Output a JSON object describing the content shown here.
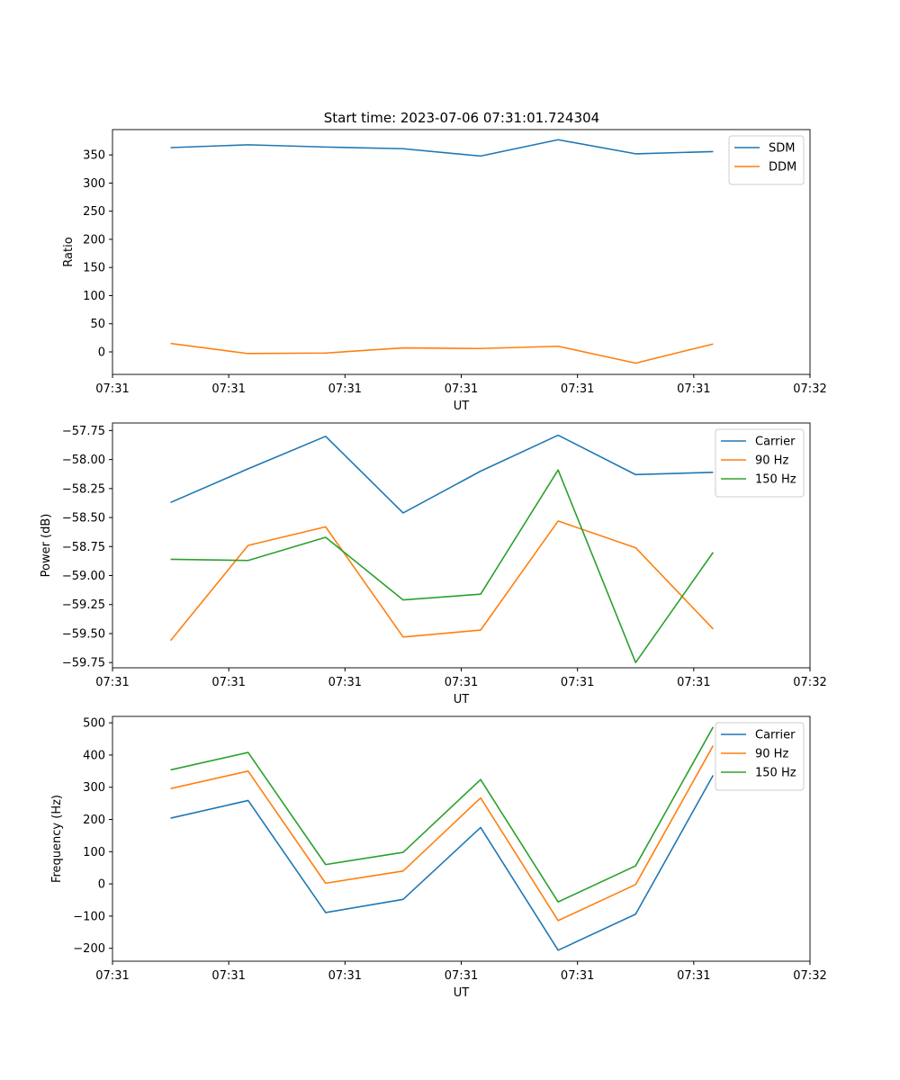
{
  "figure": {
    "title": "Start time: 2023-07-06 07:31:01.724304"
  },
  "chart_data": [
    {
      "type": "line",
      "name": "ratio",
      "xlabel": "UT",
      "ylabel": "Ratio",
      "x": [
        0,
        1,
        2,
        3,
        4,
        5,
        6,
        7
      ],
      "xlim": [
        -0.75,
        8.25
      ],
      "x_ticks": [
        -0.75,
        0.75,
        2.25,
        3.75,
        5.25,
        6.75,
        8.25
      ],
      "x_tick_labels": [
        "07:31",
        "07:31",
        "07:31",
        "07:31",
        "07:31",
        "07:31",
        "07:32"
      ],
      "ylim": [
        -40,
        395
      ],
      "y_ticks": [
        0,
        50,
        100,
        150,
        200,
        250,
        300,
        350
      ],
      "y_tick_labels": [
        "0",
        "50",
        "100",
        "150",
        "200",
        "250",
        "300",
        "350"
      ],
      "legend_position": "top-right",
      "series": [
        {
          "name": "SDM",
          "color": "#1f77b4",
          "values": [
            363,
            368,
            364,
            361,
            348,
            377,
            352,
            356
          ]
        },
        {
          "name": "DDM",
          "color": "#ff7f0e",
          "values": [
            15,
            -3,
            -2,
            7,
            6,
            10,
            -20,
            14
          ]
        }
      ]
    },
    {
      "type": "line",
      "name": "power",
      "xlabel": "UT",
      "ylabel": "Power (dB)",
      "x": [
        0,
        1,
        2,
        3,
        4,
        5,
        6,
        7
      ],
      "xlim": [
        -0.75,
        8.25
      ],
      "x_ticks": [
        -0.75,
        0.75,
        2.25,
        3.75,
        5.25,
        6.75,
        8.25
      ],
      "x_tick_labels": [
        "07:31",
        "07:31",
        "07:31",
        "07:31",
        "07:31",
        "07:31",
        "07:32"
      ],
      "ylim": [
        -59.795,
        -57.685
      ],
      "y_ticks": [
        -59.75,
        -59.5,
        -59.25,
        -59.0,
        -58.75,
        -58.5,
        -58.25,
        -58.0,
        -57.75
      ],
      "y_tick_labels": [
        "−59.75",
        "−59.50",
        "−59.25",
        "−59.00",
        "−58.75",
        "−58.50",
        "−58.25",
        "−58.00",
        "−57.75"
      ],
      "legend_position": "top-right",
      "series": [
        {
          "name": "Carrier",
          "color": "#1f77b4",
          "values": [
            -58.37,
            -58.08,
            -57.8,
            -58.46,
            -58.1,
            -57.79,
            -58.13,
            -58.11
          ]
        },
        {
          "name": "90 Hz",
          "color": "#ff7f0e",
          "values": [
            -59.56,
            -58.74,
            -58.58,
            -59.53,
            -59.47,
            -58.53,
            -58.76,
            -59.46
          ]
        },
        {
          "name": "150 Hz",
          "color": "#2ca02c",
          "values": [
            -58.86,
            -58.87,
            -58.67,
            -59.21,
            -59.16,
            -58.09,
            -59.75,
            -58.8
          ]
        }
      ]
    },
    {
      "type": "line",
      "name": "frequency",
      "xlabel": "UT",
      "ylabel": "Frequency (Hz)",
      "x": [
        0,
        1,
        2,
        3,
        4,
        5,
        6,
        7
      ],
      "xlim": [
        -0.75,
        8.25
      ],
      "x_ticks": [
        -0.75,
        0.75,
        2.25,
        3.75,
        5.25,
        6.75,
        8.25
      ],
      "x_tick_labels": [
        "07:31",
        "07:31",
        "07:31",
        "07:31",
        "07:31",
        "07:31",
        "07:32"
      ],
      "ylim": [
        -240,
        520
      ],
      "y_ticks": [
        -200,
        -100,
        0,
        100,
        200,
        300,
        400,
        500
      ],
      "y_tick_labels": [
        "−200",
        "−100",
        "0",
        "100",
        "200",
        "300",
        "400",
        "500"
      ],
      "legend_position": "top-right",
      "series": [
        {
          "name": "Carrier",
          "color": "#1f77b4",
          "values": [
            204,
            259,
            -89,
            -48,
            175,
            -206,
            -94,
            337
          ]
        },
        {
          "name": "90 Hz",
          "color": "#ff7f0e",
          "values": [
            296,
            350,
            2,
            40,
            267,
            -114,
            -2,
            429
          ]
        },
        {
          "name": "150 Hz",
          "color": "#2ca02c",
          "values": [
            354,
            408,
            60,
            98,
            324,
            -56,
            56,
            487
          ]
        }
      ]
    }
  ]
}
